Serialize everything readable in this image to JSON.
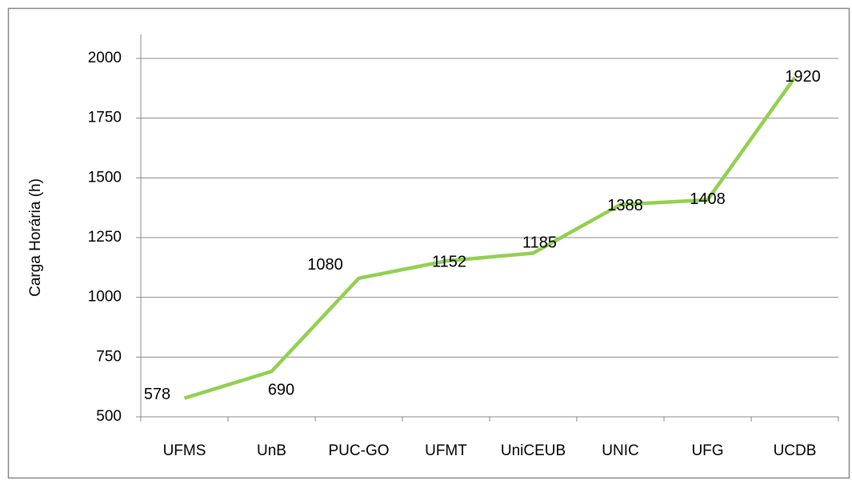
{
  "chart_data": {
    "type": "line",
    "y_axis_label": "Carga Horária (h)",
    "categories": [
      "UFMS",
      "UnB",
      "PUC-GO",
      "UFMT",
      "UniCEUB",
      "UNIC",
      "UFG",
      "UCDB"
    ],
    "series": [
      {
        "name": "Carga Horária",
        "color": "#92d050",
        "values": [
          578,
          690,
          1080,
          1152,
          1185,
          1388,
          1408,
          1920
        ]
      }
    ],
    "ylim": [
      500,
      2000
    ],
    "yticks": [
      500,
      750,
      1000,
      1250,
      1500,
      1750,
      2000
    ],
    "grid": true,
    "data_labels": true
  }
}
